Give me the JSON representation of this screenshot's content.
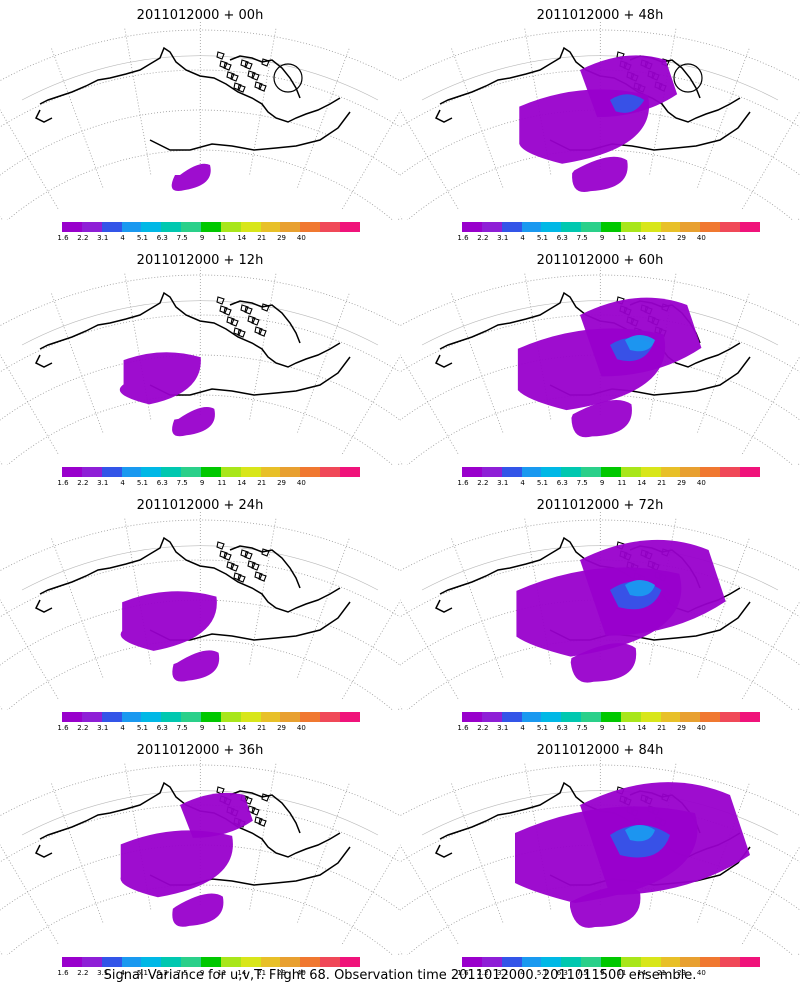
{
  "caption": "Signal Variance for u,v,T. Flight 68. Observation time 2011012000. 2011011500 ensemble.",
  "colorbar": {
    "colors": [
      "#9900cc",
      "#8e1fd6",
      "#3355e8",
      "#1a99f0",
      "#00b8e6",
      "#00c8b0",
      "#2ad08a",
      "#00c800",
      "#a8e61a",
      "#d8e61a",
      "#e8c028",
      "#e8a030",
      "#f07830",
      "#f04858",
      "#f0137a"
    ],
    "labels": [
      "1.6",
      "2.2",
      "3.1",
      "4",
      "5.1",
      "6.3",
      "7.5",
      "9",
      "11",
      "14",
      "21",
      "29",
      "40"
    ]
  },
  "panels": [
    {
      "title": "2011012000 + 00h",
      "intensity": 0
    },
    {
      "title": "2011012000 + 12h",
      "intensity": 1
    },
    {
      "title": "2011012000 + 24h",
      "intensity": 2
    },
    {
      "title": "2011012000 + 36h",
      "intensity": 3
    },
    {
      "title": "2011012000 + 48h",
      "intensity": 4
    },
    {
      "title": "2011012000 + 60h",
      "intensity": 5
    },
    {
      "title": "2011012000 + 72h",
      "intensity": 6
    },
    {
      "title": "2011012000 + 84h",
      "intensity": 7
    }
  ],
  "map": {
    "feature_colors": {
      "low": "#9900cc",
      "mid": "#3355e8",
      "high": "#1a99f0"
    }
  }
}
